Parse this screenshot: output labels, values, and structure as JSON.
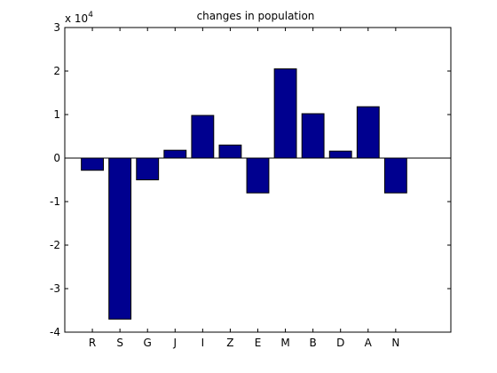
{
  "chart_data": {
    "type": "bar",
    "title": "changes in population",
    "xlabel": "",
    "ylabel": "",
    "multiplier_label": "x 10",
    "multiplier_exponent": "4",
    "categories": [
      "R",
      "S",
      "G",
      "J",
      "I",
      "Z",
      "E",
      "M",
      "B",
      "D",
      "A",
      "N"
    ],
    "values": [
      -2800,
      -37000,
      -5000,
      1800,
      9800,
      3000,
      -8000,
      20500,
      10200,
      1600,
      11800,
      -8000
    ],
    "ylim": [
      -40000,
      30000
    ],
    "xlim": [
      0,
      14
    ],
    "yticks": [
      -40000,
      -30000,
      -20000,
      -10000,
      0,
      10000,
      20000,
      30000
    ],
    "ytick_labels": [
      "-4",
      "-3",
      "-2",
      "-1",
      "0",
      "1",
      "2",
      "3"
    ],
    "grid": false,
    "bar_color": "#00008f",
    "edge_color": "#000000"
  }
}
